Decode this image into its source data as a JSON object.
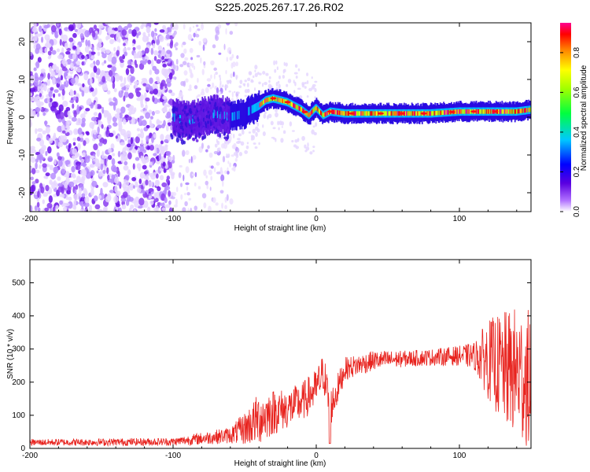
{
  "title": "S225.2025.267.17.26.R02",
  "chart_data": [
    {
      "type": "heatmap",
      "xlabel": "Height of straight line (km)",
      "ylabel": "Frequency (Hz)",
      "xlim": [
        -200,
        150
      ],
      "ylim": [
        -25,
        25
      ],
      "xticks": [
        -200,
        -100,
        0,
        100
      ],
      "xtick_labels": [
        "-200",
        "-100",
        "0",
        "100"
      ],
      "yticks": [
        -20,
        -10,
        0,
        10,
        20
      ],
      "ytick_labels": [
        "-20",
        "-10",
        "0",
        "10",
        "20"
      ],
      "ridge": {
        "description": "frequency of peak spectral amplitude vs height",
        "x": [
          -100,
          -90,
          -80,
          -70,
          -60,
          -50,
          -40,
          -35,
          -30,
          -25,
          -20,
          -15,
          -10,
          -5,
          0,
          5,
          10,
          20,
          40,
          60,
          80,
          100,
          120,
          140,
          150
        ],
        "y": [
          0,
          -1,
          0,
          1,
          0,
          1,
          3,
          4.5,
          5,
          4.5,
          4,
          3,
          2,
          0.5,
          2.5,
          0.5,
          1.5,
          1,
          1,
          1,
          1,
          1.5,
          1.5,
          1.5,
          2
        ]
      },
      "colorbar": {
        "label": "Normalized spectral amplitude",
        "range": [
          0,
          0.95
        ],
        "ticks": [
          0.0,
          0.2,
          0.4,
          0.6,
          0.8
        ],
        "tick_labels": [
          "0.0",
          "0.2",
          "0.4",
          "0.6",
          "0.8"
        ],
        "colormap": "rainbow (white, violet, blue, cyan, green, yellow, red, magenta)"
      }
    },
    {
      "type": "line",
      "xlabel": "Height of straight line (km)",
      "ylabel": "SNR (10 * v/v)",
      "xlim": [
        -200,
        150
      ],
      "ylim": [
        0,
        570
      ],
      "xticks": [
        -200,
        -100,
        0,
        100
      ],
      "xtick_labels": [
        "-200",
        "-100",
        "0",
        "100"
      ],
      "yticks": [
        0,
        100,
        200,
        300,
        400,
        500
      ],
      "ytick_labels": [
        "0",
        "100",
        "200",
        "300",
        "400",
        "500"
      ],
      "series": [
        {
          "name": "SNR",
          "color": "#e8231e",
          "envelope_x": [
            -200,
            -100,
            -60,
            -50,
            -40,
            -30,
            -20,
            -10,
            0,
            5,
            10,
            20,
            40,
            60,
            80,
            100,
            110,
            120,
            130,
            140,
            150
          ],
          "envelope_mean": [
            18,
            20,
            40,
            60,
            90,
            110,
            120,
            140,
            180,
            230,
            120,
            240,
            265,
            270,
            275,
            280,
            280,
            270,
            240,
            230,
            200
          ],
          "envelope_spread": [
            10,
            12,
            25,
            50,
            80,
            70,
            60,
            60,
            60,
            60,
            60,
            35,
            30,
            25,
            25,
            30,
            40,
            120,
            170,
            200,
            220
          ]
        }
      ]
    }
  ]
}
